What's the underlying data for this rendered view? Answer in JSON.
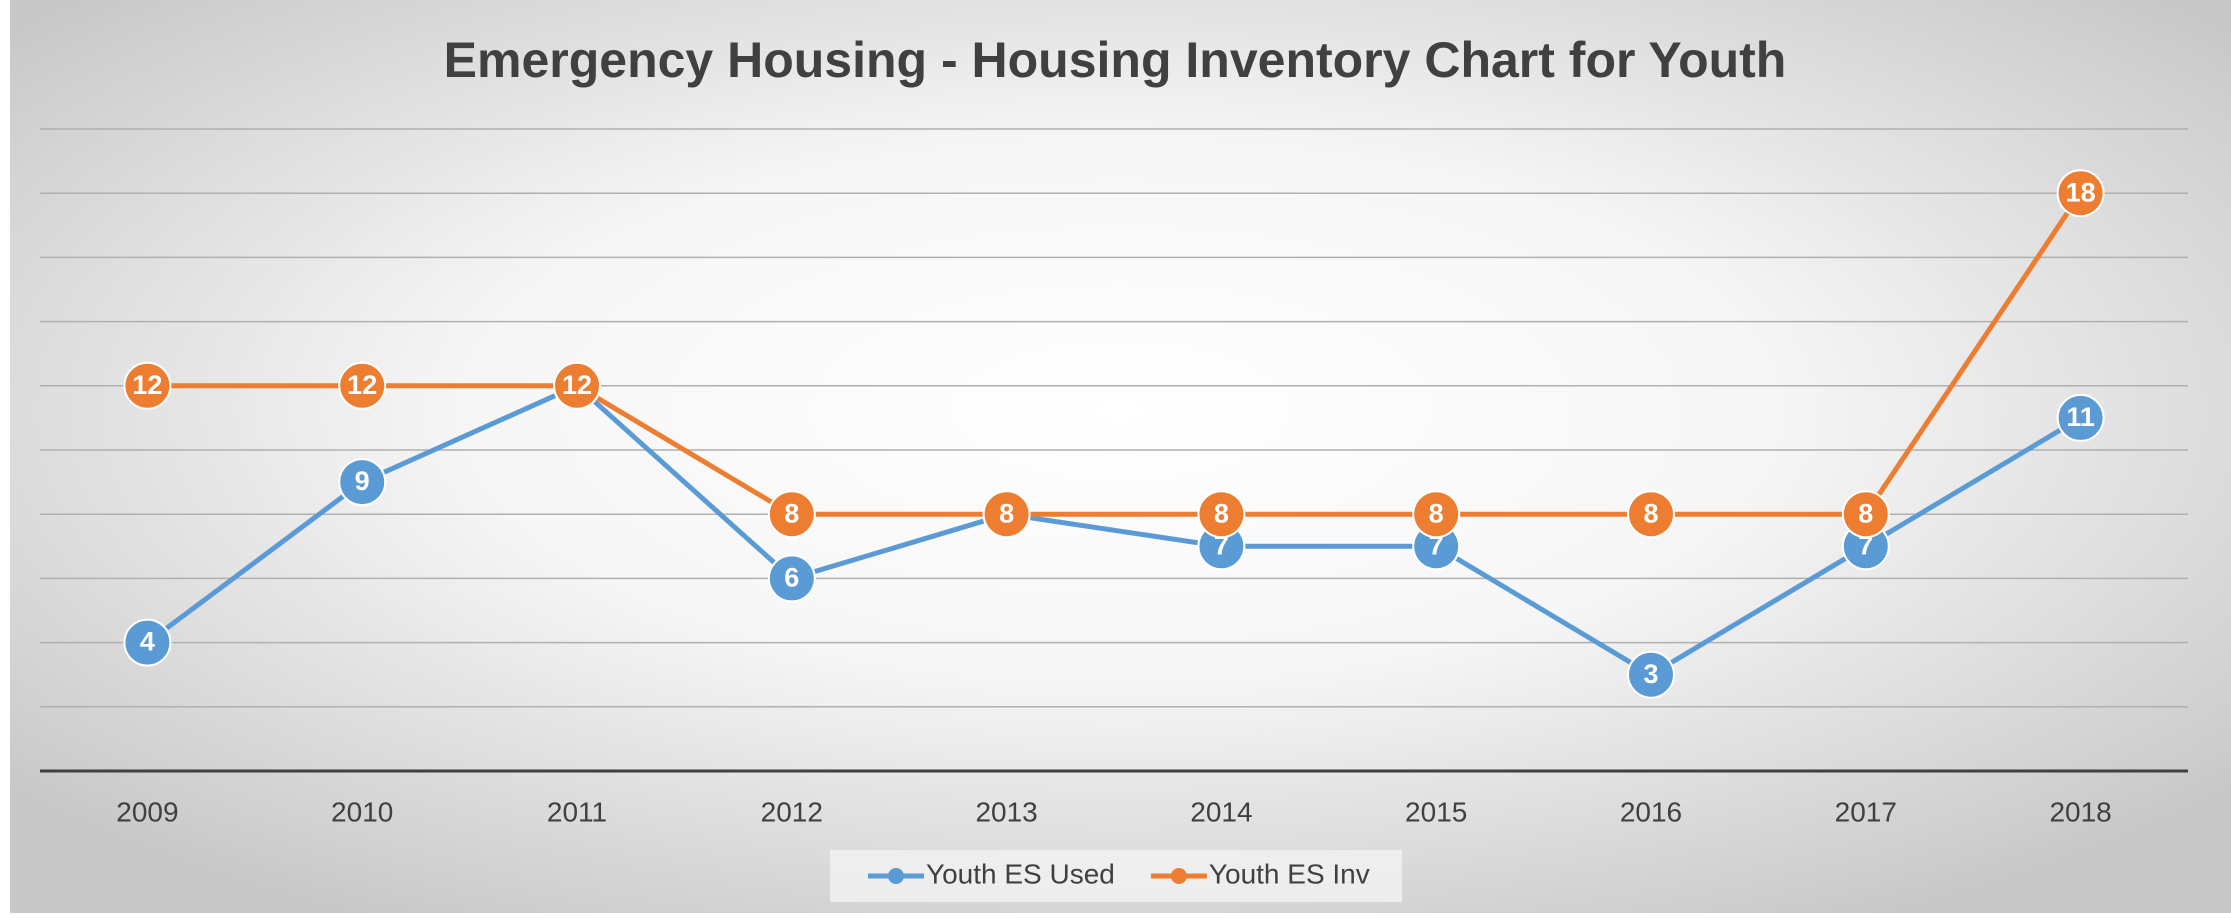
{
  "chart_data": {
    "type": "line",
    "title": "Emergency Housing - Housing Inventory Chart for Youth",
    "categories": [
      "2009",
      "2010",
      "2011",
      "2012",
      "2013",
      "2014",
      "2015",
      "2016",
      "2017",
      "2018"
    ],
    "series": [
      {
        "name": "Youth ES Used",
        "color": "#5b9bd5",
        "values": [
          4,
          9,
          12,
          6,
          8,
          7,
          7,
          3,
          7,
          11
        ]
      },
      {
        "name": "Youth ES Inv",
        "color": "#ed7d31",
        "values": [
          12,
          12,
          12,
          8,
          8,
          8,
          8,
          8,
          8,
          18
        ]
      }
    ],
    "ylim": [
      0,
      20
    ],
    "yticks": [
      0,
      2,
      4,
      6,
      8,
      10,
      12,
      14,
      16,
      18,
      20
    ],
    "grid": true,
    "legend": "bottom"
  }
}
